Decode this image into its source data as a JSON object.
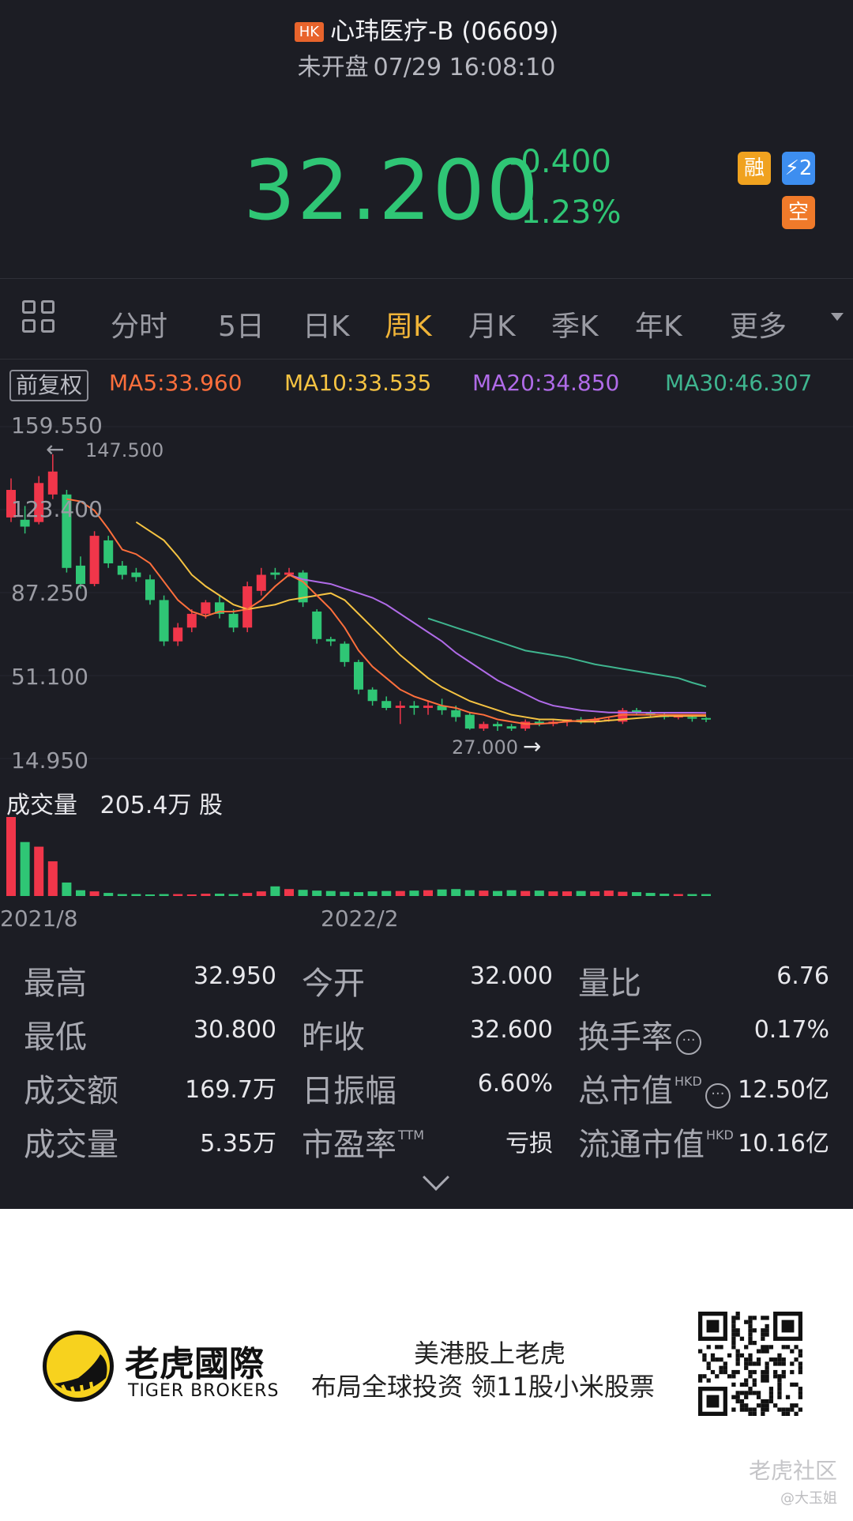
{
  "header": {
    "market_badge": "HK",
    "stock_name": "心玮医疗-B (06609)",
    "status": "未开盘",
    "datetime": "07/29 16:08:10",
    "price": "32.200",
    "change": "-0.400",
    "change_pct": "-1.23%",
    "badges": {
      "rong": "融",
      "level2": "⚡2",
      "kong": "空"
    }
  },
  "tabs": {
    "items": [
      "分时",
      "5日",
      "日K",
      "周K",
      "月K",
      "季K",
      "年K",
      "更多"
    ],
    "active": "周K"
  },
  "ma": {
    "fuquan": "前复权",
    "ma5": "MA5:33.960",
    "ma10": "MA10:33.535",
    "ma20": "MA20:34.850",
    "ma30": "MA30:46.307",
    "colors": {
      "ma5": "#ff6f3c",
      "ma10": "#f5c342",
      "ma20": "#b06be8",
      "ma30": "#3fb58f"
    }
  },
  "chart_data": {
    "type": "candlestick",
    "y_ticks": [
      "159.550",
      "123.400",
      "87.250",
      "51.100",
      "14.950"
    ],
    "annot_high": "147.500",
    "annot_low": "27.000",
    "x_labels": [
      "2021/8",
      "2022/2"
    ],
    "volume_label": "成交量",
    "volume_value": "205.4万 股",
    "candles": [
      {
        "o": 120,
        "c": 132,
        "h": 137,
        "l": 118
      },
      {
        "o": 119,
        "c": 116,
        "h": 125,
        "l": 113
      },
      {
        "o": 118,
        "c": 135,
        "h": 138,
        "l": 117
      },
      {
        "o": 130,
        "c": 140,
        "h": 147.5,
        "l": 128
      },
      {
        "o": 130,
        "c": 98,
        "h": 132,
        "l": 96
      },
      {
        "o": 99,
        "c": 91,
        "h": 103,
        "l": 89
      },
      {
        "o": 91,
        "c": 112,
        "h": 114,
        "l": 90
      },
      {
        "o": 110,
        "c": 100,
        "h": 112,
        "l": 98
      },
      {
        "o": 99,
        "c": 95,
        "h": 101,
        "l": 93
      },
      {
        "o": 96,
        "c": 94,
        "h": 98,
        "l": 92
      },
      {
        "o": 93,
        "c": 84,
        "h": 95,
        "l": 82
      },
      {
        "o": 84,
        "c": 66,
        "h": 86,
        "l": 64
      },
      {
        "o": 66,
        "c": 72,
        "h": 74,
        "l": 64
      },
      {
        "o": 72,
        "c": 78,
        "h": 80,
        "l": 70
      },
      {
        "o": 78,
        "c": 83,
        "h": 84,
        "l": 76
      },
      {
        "o": 83,
        "c": 78,
        "h": 86,
        "l": 76
      },
      {
        "o": 78,
        "c": 72,
        "h": 80,
        "l": 70
      },
      {
        "o": 72,
        "c": 90,
        "h": 92,
        "l": 70
      },
      {
        "o": 88,
        "c": 95,
        "h": 98,
        "l": 86
      },
      {
        "o": 96,
        "c": 95,
        "h": 98,
        "l": 93
      },
      {
        "o": 95,
        "c": 96,
        "h": 98,
        "l": 94
      },
      {
        "o": 96,
        "c": 83,
        "h": 97,
        "l": 81
      },
      {
        "o": 79,
        "c": 67,
        "h": 80,
        "l": 65
      },
      {
        "o": 67,
        "c": 66,
        "h": 68,
        "l": 64
      },
      {
        "o": 65,
        "c": 57,
        "h": 66,
        "l": 55
      },
      {
        "o": 57,
        "c": 45,
        "h": 58,
        "l": 43
      },
      {
        "o": 45,
        "c": 40,
        "h": 46,
        "l": 38
      },
      {
        "o": 40,
        "c": 37,
        "h": 42,
        "l": 36
      },
      {
        "o": 37,
        "c": 38,
        "h": 40,
        "l": 30
      },
      {
        "o": 38,
        "c": 37,
        "h": 40,
        "l": 34
      },
      {
        "o": 37,
        "c": 38,
        "h": 40,
        "l": 34
      },
      {
        "o": 38,
        "c": 36,
        "h": 41,
        "l": 34
      },
      {
        "o": 36,
        "c": 33,
        "h": 38,
        "l": 31
      },
      {
        "o": 34,
        "c": 28,
        "h": 35,
        "l": 27.5
      },
      {
        "o": 28,
        "c": 30,
        "h": 31,
        "l": 27
      },
      {
        "o": 30,
        "c": 29,
        "h": 31,
        "l": 27
      },
      {
        "o": 29,
        "c": 28,
        "h": 30,
        "l": 27
      },
      {
        "o": 28,
        "c": 31,
        "h": 32,
        "l": 27
      },
      {
        "o": 31,
        "c": 30,
        "h": 32,
        "l": 29
      },
      {
        "o": 30,
        "c": 31,
        "h": 32,
        "l": 29
      },
      {
        "o": 31,
        "c": 32,
        "h": 32,
        "l": 29
      },
      {
        "o": 32,
        "c": 31,
        "h": 33,
        "l": 30
      },
      {
        "o": 31,
        "c": 32,
        "h": 33,
        "l": 30
      },
      {
        "o": 32,
        "c": 32,
        "h": 33,
        "l": 31
      },
      {
        "o": 31,
        "c": 36,
        "h": 37,
        "l": 30
      },
      {
        "o": 36,
        "c": 35,
        "h": 37,
        "l": 34
      },
      {
        "o": 35,
        "c": 34,
        "h": 36,
        "l": 33
      },
      {
        "o": 34,
        "c": 33,
        "h": 35,
        "l": 32
      },
      {
        "o": 33,
        "c": 33.5,
        "h": 34,
        "l": 32
      },
      {
        "o": 33,
        "c": 32.5,
        "h": 34,
        "l": 31
      },
      {
        "o": 32.6,
        "c": 32.2,
        "h": 33,
        "l": 30.8
      }
    ],
    "ma5": [
      null,
      null,
      null,
      null,
      128,
      127,
      123,
      115,
      106,
      104,
      100,
      92,
      84,
      79,
      77,
      79,
      79,
      80,
      84,
      90,
      95,
      92,
      86,
      80,
      72,
      62,
      55,
      50,
      45,
      42,
      40,
      38,
      37,
      35,
      34,
      32,
      31,
      30,
      30,
      30.5,
      31,
      31.5,
      32,
      33,
      34,
      34,
      34,
      34,
      34,
      34,
      33.96
    ],
    "ma10": [
      null,
      null,
      null,
      null,
      null,
      null,
      null,
      null,
      null,
      118,
      114,
      110,
      103,
      95,
      90,
      86,
      82,
      80,
      81,
      82,
      84,
      85,
      86,
      87,
      84,
      78,
      72,
      66,
      60,
      55,
      50,
      46,
      43,
      40,
      38,
      36,
      34,
      33,
      32,
      32,
      31.5,
      31,
      31,
      31.5,
      32,
      32.5,
      33,
      33.5,
      33.5,
      33.5,
      33.535
    ],
    "ma20": [
      null,
      null,
      null,
      null,
      null,
      null,
      null,
      null,
      null,
      null,
      null,
      null,
      null,
      null,
      null,
      null,
      null,
      null,
      null,
      null,
      95,
      93,
      92,
      91,
      89,
      87,
      85,
      82,
      78,
      74,
      70,
      66,
      61,
      57,
      53,
      49,
      46,
      43,
      40,
      38,
      37,
      36,
      35.5,
      35,
      35,
      35,
      34.9,
      34.9,
      34.9,
      34.9,
      34.85
    ],
    "ma30": [
      null,
      null,
      null,
      null,
      null,
      null,
      null,
      null,
      null,
      null,
      null,
      null,
      null,
      null,
      null,
      null,
      null,
      null,
      null,
      null,
      null,
      null,
      null,
      null,
      null,
      null,
      null,
      null,
      null,
      null,
      76,
      74,
      72,
      70,
      68,
      66,
      64,
      62,
      61,
      60,
      59,
      57.5,
      56,
      55,
      54,
      53,
      52,
      51,
      50,
      48,
      46.307
    ],
    "volumes": [
      205,
      140,
      128,
      90,
      35,
      15,
      12,
      8,
      5,
      5,
      4,
      5,
      5,
      4,
      6,
      6,
      5,
      8,
      12,
      25,
      18,
      16,
      14,
      13,
      11,
      10,
      12,
      13,
      13,
      14,
      15,
      17,
      18,
      15,
      14,
      13,
      15,
      13,
      14,
      12,
      12,
      13,
      12,
      14,
      11,
      10,
      8,
      6,
      5,
      5,
      5
    ],
    "last_label": "2022/2"
  },
  "stats": {
    "rows": [
      [
        {
          "label": "最高",
          "value": "32.950"
        },
        {
          "label": "今开",
          "value": "32.000"
        },
        {
          "label": "量比",
          "value": "6.76"
        }
      ],
      [
        {
          "label": "最低",
          "value": "30.800"
        },
        {
          "label": "昨收",
          "value": "32.600"
        },
        {
          "label": "换手率",
          "value": "0.17%"
        }
      ],
      [
        {
          "label": "成交额",
          "value": "169.7万"
        },
        {
          "label": "日振幅",
          "value": "6.60%"
        },
        {
          "label": "总市值",
          "value": "12.50亿"
        }
      ],
      [
        {
          "label": "成交量",
          "value": "5.35万"
        },
        {
          "label": "市盈率",
          "value": "亏损"
        },
        {
          "label": "流通市值",
          "value": "10.16亿"
        }
      ]
    ],
    "sup_hkd": "HKD",
    "sup_ttm": "TTM",
    "info_glyph": "···"
  },
  "footer": {
    "logo_cn": "老虎國際",
    "logo_en": "TIGER BROKERS",
    "slogan1": "美港股上老虎",
    "slogan2": "布局全球投资 领11股小米股票",
    "watermark": "老虎社区",
    "watermark2": "@大玉姐"
  }
}
